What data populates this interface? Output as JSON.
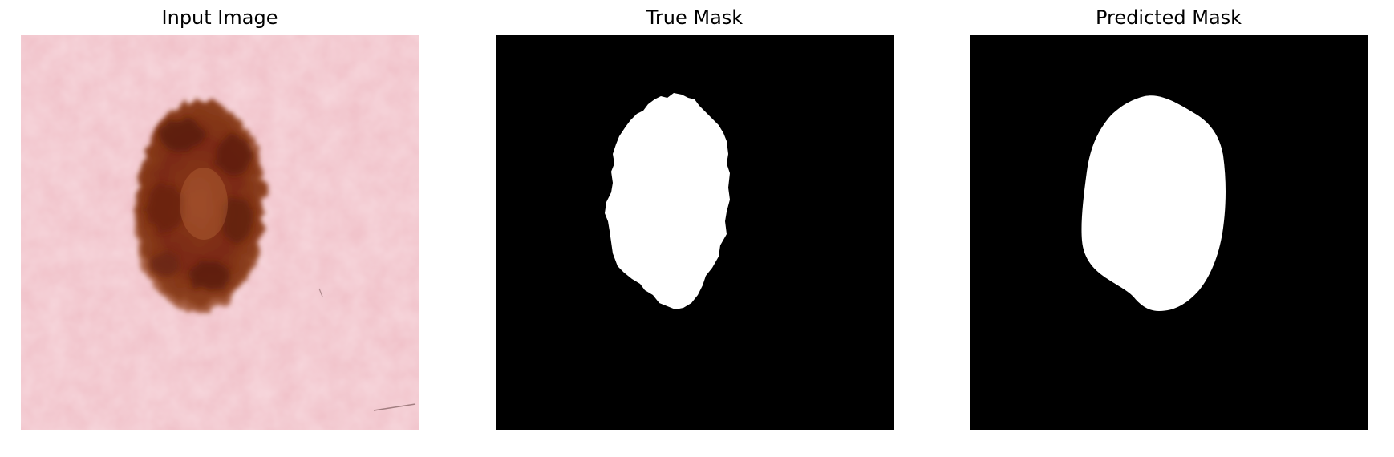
{
  "panels": [
    {
      "id": "input",
      "title": "Input Image",
      "content": "skin-lesion-photo",
      "background_color": "#f0c0c8",
      "lesion_color": "#7a2a12",
      "lesion_edge_color": "#a4502a"
    },
    {
      "id": "true-mask",
      "title": "True Mask",
      "content": "binary-mask",
      "background_color": "#000000",
      "mask_color": "#ffffff"
    },
    {
      "id": "predicted-mask",
      "title": "Predicted Mask",
      "content": "binary-mask",
      "background_color": "#000000",
      "mask_color": "#ffffff"
    }
  ]
}
